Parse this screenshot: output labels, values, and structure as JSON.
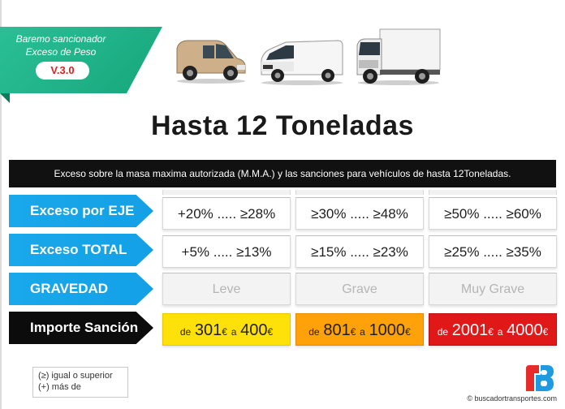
{
  "badge": {
    "line1": "Baremo sancionador",
    "line2": "Exceso de  Peso",
    "version": "V.3.0",
    "colors": {
      "ribbon": "#1fb488",
      "version_text": "#e02020"
    }
  },
  "vehicles": [
    "van-small-icon",
    "van-white-icon",
    "box-truck-icon"
  ],
  "title": "Hasta 12 Toneladas",
  "info_bar": "Exceso sobre la masa maxima autorizada (M.M.A.) y las sanciones para vehículos de hasta 12Toneladas.",
  "rows": {
    "eje": {
      "label": "Exceso por EJE",
      "cells": [
        "+20% ..... ≥28%",
        "≥30% ..... ≥48%",
        "≥50% ..... ≥60%"
      ]
    },
    "total": {
      "label": "Exceso TOTAL",
      "cells": [
        "+5% ..... ≥13%",
        "≥15% ..... ≥23%",
        "≥25% ..... ≥35%"
      ]
    },
    "gravedad": {
      "label": "GRAVEDAD",
      "cells": [
        "Leve",
        "Grave",
        "Muy Grave"
      ]
    },
    "importe": {
      "label": "Importe Sanción",
      "cells": [
        {
          "de": "de",
          "from": "301",
          "cur1": "€",
          "a": "a",
          "to": "400",
          "cur2": "€",
          "color": "#ffe10a"
        },
        {
          "de": "de",
          "from": "801",
          "cur1": "€",
          "a": "a",
          "to": "1000",
          "cur2": "€",
          "color": "#ffa20a"
        },
        {
          "de": "de",
          "from": "2001",
          "cur1": "€",
          "a": "a",
          "to": "4000",
          "cur2": "€",
          "color": "#e01818"
        }
      ]
    }
  },
  "legend": {
    "line1": "(≥) igual o superior",
    "line2": "(+) más de"
  },
  "credit": "© buscadortransportes.com",
  "colors": {
    "label_blue": "#16a4ea",
    "label_black": "#0c0c0c",
    "info_bar": "#111111"
  }
}
